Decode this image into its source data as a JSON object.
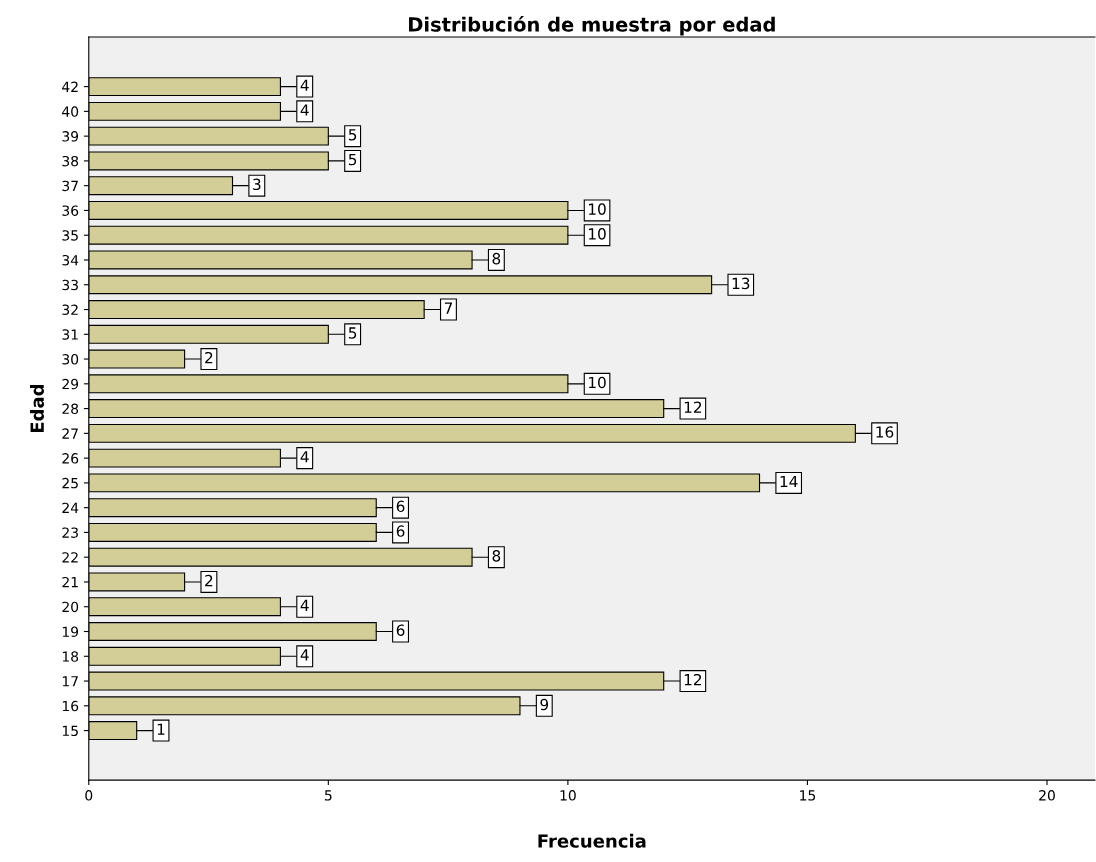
{
  "chart_data": {
    "type": "bar",
    "orientation": "horizontal",
    "title": "Distribución de muestra por edad",
    "xlabel": "Frecuencia",
    "ylabel": "Edad",
    "categories": [
      "42",
      "40",
      "39",
      "38",
      "37",
      "36",
      "35",
      "34",
      "33",
      "32",
      "31",
      "30",
      "29",
      "28",
      "27",
      "26",
      "25",
      "24",
      "23",
      "22",
      "21",
      "20",
      "19",
      "18",
      "17",
      "16",
      "15"
    ],
    "values": [
      4,
      4,
      5,
      5,
      3,
      10,
      10,
      8,
      13,
      7,
      5,
      2,
      10,
      12,
      16,
      4,
      14,
      6,
      6,
      8,
      2,
      4,
      6,
      4,
      12,
      9,
      1
    ],
    "color": "#d3ce97",
    "xlim": [
      0,
      21
    ],
    "xticks": [
      0,
      5,
      10,
      15,
      20
    ],
    "grid": false,
    "data_labels": true
  }
}
